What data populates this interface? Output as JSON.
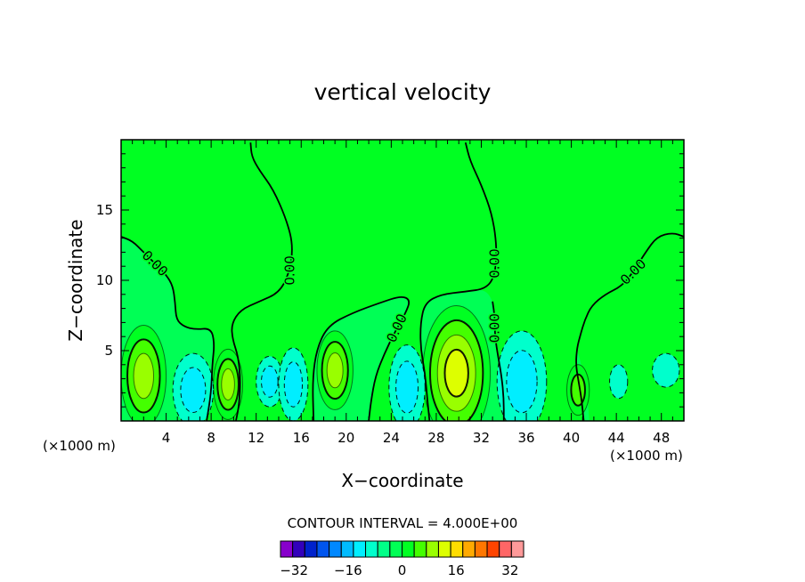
{
  "chart_data": {
    "type": "contour",
    "title": "vertical velocity",
    "xlabel": "X−coordinate",
    "ylabel": "Z−coordinate",
    "x_unit_left": "(×1000 m)",
    "x_unit_right": "(×1000 m)",
    "xlim": [
      0,
      50
    ],
    "ylim": [
      0,
      20
    ],
    "x_ticks": [
      4,
      8,
      12,
      16,
      20,
      24,
      28,
      32,
      36,
      40,
      44,
      48
    ],
    "y_ticks": [
      5,
      10,
      15
    ],
    "contour_label": "0.00",
    "contour_interval_text": "CONTOUR INTERVAL = 4.000E+00",
    "colorbar": {
      "min": -36,
      "max": 36,
      "step": 4,
      "tick_values": [
        -32,
        -16,
        0,
        16,
        32
      ],
      "tick_labels": [
        "−32",
        "−16",
        "0",
        "16",
        "32"
      ],
      "colors": [
        "#8800cc",
        "#3300bb",
        "#0022cc",
        "#0055ee",
        "#0088ff",
        "#00bbff",
        "#00eeff",
        "#00ffcc",
        "#00ff88",
        "#00ff55",
        "#00ff22",
        "#44ff00",
        "#99ff00",
        "#ddff00",
        "#ffdd00",
        "#ffaa00",
        "#ff7700",
        "#ff4400",
        "#ff6666",
        "#ff9999"
      ]
    },
    "cells": [
      {
        "x": 2,
        "z": 3.2,
        "rx": 2.0,
        "rz": 3.6,
        "levels": [
          4,
          8,
          12
        ]
      },
      {
        "x": 9.5,
        "z": 2.6,
        "rx": 1.3,
        "rz": 2.5,
        "levels": [
          4,
          8,
          12
        ]
      },
      {
        "x": 19,
        "z": 3.6,
        "rx": 1.6,
        "rz": 2.8,
        "levels": [
          4,
          8,
          12
        ]
      },
      {
        "x": 29.8,
        "z": 3.4,
        "rx": 3.0,
        "rz": 4.8,
        "levels": [
          4,
          8,
          12,
          16
        ]
      },
      {
        "x": 40.6,
        "z": 2.2,
        "rx": 1.0,
        "rz": 1.8,
        "levels": [
          4,
          8
        ]
      },
      {
        "x": 6.4,
        "z": 2.2,
        "rx": 1.8,
        "rz": 2.6,
        "levels": [
          -4,
          -8
        ]
      },
      {
        "x": 13.2,
        "z": 2.8,
        "rx": 1.2,
        "rz": 1.8,
        "levels": [
          -4,
          -8
        ]
      },
      {
        "x": 15.3,
        "z": 2.6,
        "rx": 1.3,
        "rz": 2.6,
        "levels": [
          -4,
          -8
        ]
      },
      {
        "x": 25.4,
        "z": 2.4,
        "rx": 1.6,
        "rz": 3.0,
        "levels": [
          -4,
          -8
        ]
      },
      {
        "x": 35.6,
        "z": 2.8,
        "rx": 2.2,
        "rz": 3.6,
        "levels": [
          -4,
          -8
        ]
      },
      {
        "x": 44.2,
        "z": 2.8,
        "rx": 0.8,
        "rz": 1.2,
        "levels": [
          -4
        ]
      },
      {
        "x": 48.4,
        "z": 3.6,
        "rx": 1.2,
        "rz": 1.2,
        "levels": [
          -4
        ]
      }
    ],
    "zero_contours": [
      {
        "label_pos": [
          3,
          11.2
        ],
        "label_angle": 45,
        "points": [
          [
            0,
            13.1
          ],
          [
            1,
            12.8
          ],
          [
            2,
            12.0
          ],
          [
            3,
            11.2
          ],
          [
            4,
            10.4
          ],
          [
            4.6,
            9.6
          ],
          [
            4.8,
            8.4
          ],
          [
            4.9,
            7.2
          ],
          [
            5.6,
            6.7
          ],
          [
            6.6,
            6.5
          ],
          [
            8,
            6.6
          ],
          [
            8.3,
            5.5
          ],
          [
            8.1,
            4.0
          ],
          [
            8,
            2.0
          ],
          [
            7.6,
            0
          ]
        ]
      },
      {
        "label_pos": [
          15,
          10.7
        ],
        "label_angle": -90,
        "points": [
          [
            11.5,
            19.8
          ],
          [
            11.6,
            18.8
          ],
          [
            12.3,
            17.8
          ],
          [
            13.5,
            16.5
          ],
          [
            14.7,
            14.3
          ],
          [
            15.3,
            12.4
          ],
          [
            14.9,
            10.4
          ],
          [
            14,
            9.1
          ],
          [
            12.3,
            8.5
          ],
          [
            10.6,
            7.9
          ],
          [
            9.8,
            6.9
          ],
          [
            9.9,
            5.8
          ],
          [
            10.4,
            4.6
          ],
          [
            10.6,
            3.0
          ],
          [
            10.5,
            1.2
          ],
          [
            10.2,
            0
          ]
        ]
      },
      {
        "label_pos": [
          24.5,
          6.6
        ],
        "label_angle": -65,
        "points": [
          [
            17.1,
            0
          ],
          [
            17.0,
            3.0
          ],
          [
            17.4,
            5.2
          ],
          [
            18.4,
            6.8
          ],
          [
            20.6,
            7.7
          ],
          [
            23.0,
            8.4
          ],
          [
            24.9,
            8.9
          ],
          [
            25.7,
            8.6
          ],
          [
            25.3,
            7.7
          ],
          [
            24.3,
            6.3
          ],
          [
            23.4,
            4.8
          ],
          [
            22.6,
            3.2
          ],
          [
            22.2,
            1.4
          ],
          [
            22.0,
            0
          ]
        ]
      },
      {
        "label_pos": [
          33.2,
          11.2
        ],
        "label_angle": -90,
        "points": [
          [
            30.6,
            19.8
          ],
          [
            31.0,
            18.5
          ],
          [
            32.0,
            16.8
          ],
          [
            33.0,
            14.6
          ],
          [
            33.4,
            12.2
          ],
          [
            33.2,
            10.3
          ],
          [
            32.4,
            9.4
          ],
          [
            30.6,
            9.2
          ],
          [
            28.4,
            9.0
          ],
          [
            27.0,
            8.4
          ],
          [
            26.6,
            7.0
          ],
          [
            26.6,
            5.2
          ],
          [
            27.0,
            3.4
          ],
          [
            27.2,
            1.6
          ],
          [
            27.4,
            0
          ]
        ]
      },
      {
        "label_pos": [
          33.2,
          6.6
        ],
        "label_angle": -90,
        "points": [
          [
            33.0,
            8.5
          ],
          [
            33.2,
            7.4
          ],
          [
            33.2,
            6.2
          ],
          [
            33.4,
            5.0
          ],
          [
            33.8,
            3.2
          ],
          [
            34.0,
            1.6
          ],
          [
            34.0,
            0
          ]
        ]
      },
      {
        "label_pos": [
          45.5,
          10.6
        ],
        "label_angle": -45,
        "points": [
          [
            50,
            13.1
          ],
          [
            49,
            13.4
          ],
          [
            47.6,
            13.1
          ],
          [
            46.6,
            12.0
          ],
          [
            45.5,
            10.6
          ],
          [
            44.5,
            9.6
          ],
          [
            43,
            9.0
          ],
          [
            41.8,
            8.2
          ],
          [
            41.2,
            7.2
          ],
          [
            40.8,
            6.1
          ],
          [
            40.5,
            5.2
          ],
          [
            40.4,
            4.0
          ],
          [
            40.6,
            3.0
          ],
          [
            40.9,
            1.6
          ],
          [
            41.1,
            0
          ]
        ]
      }
    ]
  }
}
